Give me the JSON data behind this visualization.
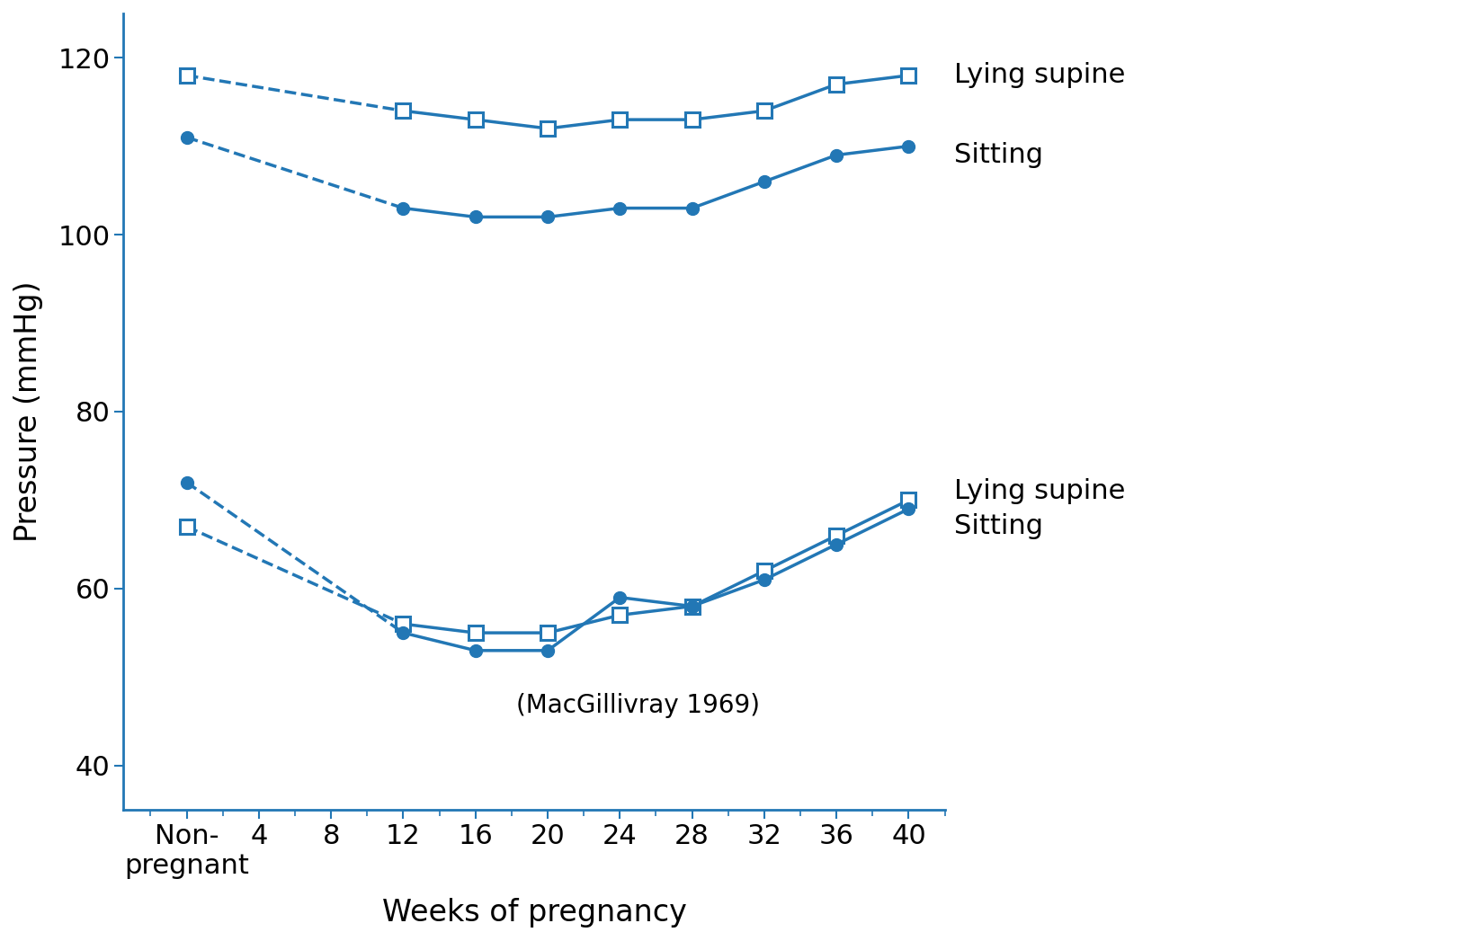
{
  "color": "#2277b5",
  "background_color": "#ffffff",
  "ylabel": "Pressure (mmHg)",
  "xlabel": "Weeks of pregnancy",
  "annotation": "(MacGillivray 1969)",
  "ylim": [
    35,
    125
  ],
  "yticks": [
    40,
    60,
    80,
    100,
    120
  ],
  "x_nonpreg": 0,
  "x_solid": [
    12,
    16,
    20,
    24,
    28,
    32,
    36,
    40
  ],
  "sys_sup_np": 118,
  "sys_sup": [
    114,
    113,
    112,
    113,
    113,
    114,
    117,
    118
  ],
  "sys_sit_np": 111,
  "sys_sit": [
    103,
    102,
    102,
    103,
    103,
    106,
    109,
    110
  ],
  "dia_sup_np": 67,
  "dia_sup": [
    56,
    55,
    55,
    57,
    58,
    62,
    66,
    70
  ],
  "dia_sit_np": 72,
  "dia_sit": [
    55,
    53,
    53,
    59,
    58,
    61,
    65,
    69
  ],
  "label_sys_sup": "Lying supine",
  "label_sys_sit": "Sitting",
  "label_dia_sup": "Lying supine",
  "label_dia_sit": "Sitting",
  "lw": 2.5,
  "ms_sq": 11,
  "ms_circ": 10,
  "xtick_pos": [
    0,
    4,
    8,
    12,
    16,
    20,
    24,
    28,
    32,
    36,
    40
  ],
  "xtick_labels": [
    "Non-\npregnant",
    "4",
    "8",
    "12",
    "16",
    "20",
    "24",
    "28",
    "32",
    "36",
    "40"
  ]
}
